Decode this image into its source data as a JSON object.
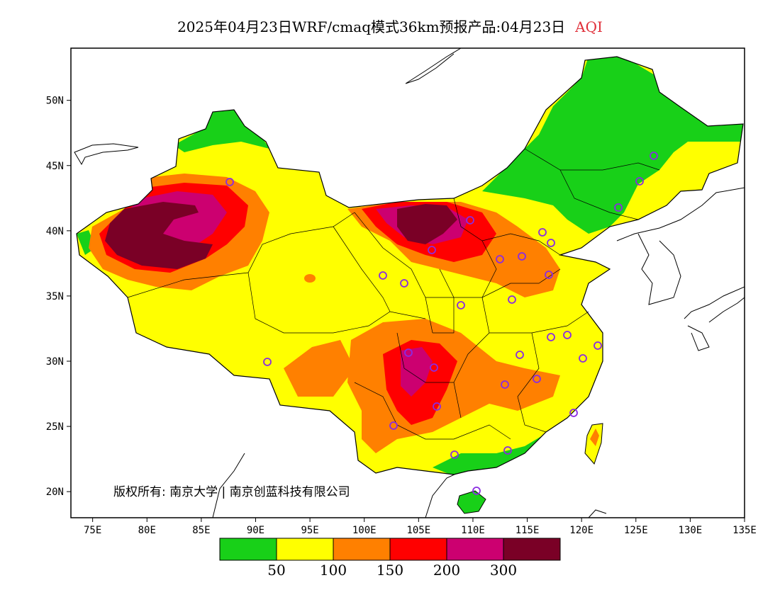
{
  "title": {
    "main": "2025年04月23日WRF/cmaq模式36km预报产品:04月23日",
    "variable": "AQI"
  },
  "axes": {
    "x_ticks": [
      "75E",
      "80E",
      "85E",
      "90E",
      "95E",
      "100E",
      "105E",
      "110E",
      "115E",
      "120E",
      "125E",
      "130E",
      "135E"
    ],
    "y_ticks": [
      "50N",
      "45N",
      "40N",
      "35N",
      "30N",
      "25N",
      "20N"
    ],
    "lon_range": [
      73,
      135
    ],
    "lat_range": [
      18,
      54
    ]
  },
  "legend": {
    "colors": [
      "#18d018",
      "#ffff00",
      "#ff8000",
      "#ff0000",
      "#cc0070",
      "#7a0026"
    ],
    "labels": [
      "50",
      "100",
      "150",
      "200",
      "300"
    ]
  },
  "copyright": "版权所有: 南京大学 | 南京创蓝科技有限公司",
  "colors": {
    "good": "#18d018",
    "moderate": "#ffff00",
    "unhealthy_sensitive": "#ff8000",
    "unhealthy": "#ff0000",
    "very_unhealthy": "#cc0070",
    "hazardous": "#7a0026",
    "station": "#8a2be2"
  }
}
